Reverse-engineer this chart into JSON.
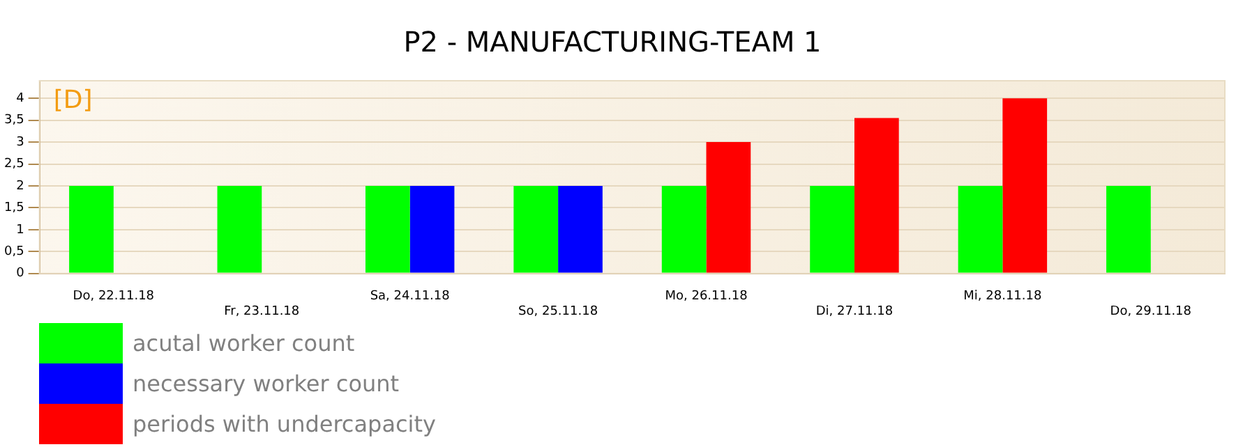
{
  "chart_data": {
    "type": "bar",
    "title": "P2 - MANUFACTURING-TEAM 1",
    "categories": [
      "Do, 22.11.18",
      "Fr, 23.11.18",
      "Sa, 24.11.18",
      "So, 25.11.18",
      "Mo, 26.11.18",
      "Di, 27.11.18",
      "Mi, 28.11.18",
      "Do, 29.11.18"
    ],
    "series": [
      {
        "name": "acutal worker count",
        "color": "#00ff00",
        "values": [
          2,
          2,
          2,
          2,
          2,
          2,
          2,
          2
        ]
      },
      {
        "name": "necessary worker count",
        "color": "#0000ff",
        "values": [
          null,
          null,
          2,
          2,
          null,
          null,
          null,
          null
        ]
      },
      {
        "name": "periods with undercapacity",
        "color": "#ff0000",
        "values": [
          null,
          null,
          null,
          null,
          3,
          3.55,
          4,
          null
        ]
      }
    ],
    "ylim": [
      0,
      4.4
    ],
    "yticks": [
      0,
      {
        "value": 0.5,
        "label": "0,5"
      },
      1,
      {
        "value": 1.5,
        "label": "1,5"
      },
      2,
      {
        "value": 2.5,
        "label": "2,5"
      },
      3,
      {
        "value": 3.5,
        "label": "3,5"
      },
      4
    ],
    "annotations": [
      "[D]"
    ],
    "grid": "y",
    "legend": "bottom left"
  }
}
